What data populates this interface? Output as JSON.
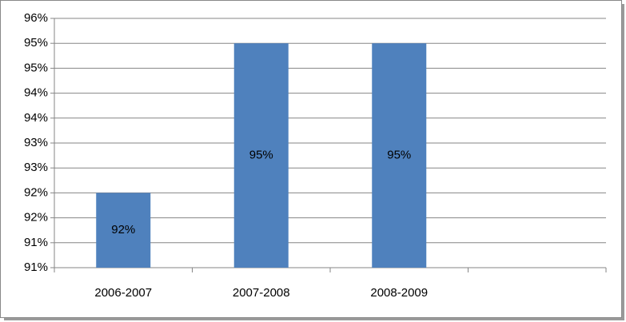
{
  "chart_data": {
    "type": "bar",
    "categories": [
      "2006-2007",
      "2007-2008",
      "2008-2009",
      null
    ],
    "values": [
      92,
      95,
      95,
      null
    ],
    "value_labels": [
      "92%",
      "95%",
      "95%",
      null
    ],
    "color": "#4f81bd",
    "ylim": [
      90.5,
      95.5
    ],
    "yticks": [
      {
        "value": 90.5,
        "label": "91%"
      },
      {
        "value": 91,
        "label": "91%"
      },
      {
        "value": 91.5,
        "label": "92%"
      },
      {
        "value": 92,
        "label": "92%"
      },
      {
        "value": 92.5,
        "label": "93%"
      },
      {
        "value": 93,
        "label": "93%"
      },
      {
        "value": 93.5,
        "label": "94%"
      },
      {
        "value": 94,
        "label": "94%"
      },
      {
        "value": 94.5,
        "label": "95%"
      },
      {
        "value": 95,
        "label": "95%"
      },
      {
        "value": 95.5,
        "label": "96%"
      }
    ],
    "grid": true
  }
}
